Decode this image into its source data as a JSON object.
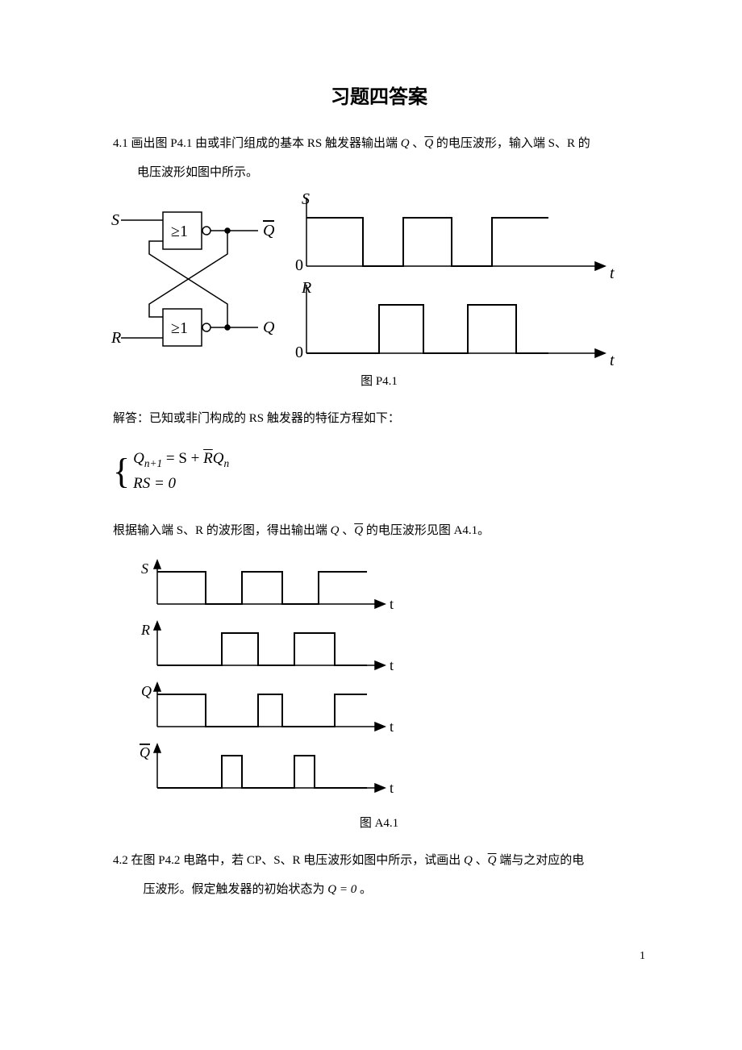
{
  "title": "习题四答案",
  "q41": {
    "text_a": "4.1 画出图 P4.1 由或非门组成的基本 RS 触发器输出端",
    "text_b": "的电压波形，输入端 S、R 的",
    "text_c": "电压波形如图中所示。",
    "caption": "图  P4.1",
    "solution_intro": "解答：已知或非门构成的 RS 触发器的特征方程如下：",
    "eq_line1_a": "Q",
    "eq_line1_sub": "n+1",
    "eq_line1_b": " = S + ",
    "eq_line1_c": "R",
    "eq_line1_d": "Q",
    "eq_line1_sub2": "n",
    "eq_line2": "RS = 0",
    "result_a": "根据输入端 S、R 的波形图，得出输出端",
    "result_b": "的电压波形见图 A4.1。",
    "caption2": "图 A4.1"
  },
  "q42": {
    "text_a": "4.2  在图 P4.2 电路中，若 CP、S、R 电压波形如图中所示，试画出",
    "text_b": "端与之对应的电",
    "text_c": "压波形。假定触发器的初始状态为",
    "text_d": " 。"
  },
  "sym": {
    "Q": "Q",
    "sep": " 、",
    "Qbar": "Q",
    "eq0": "Q = 0"
  },
  "page_num": "1",
  "style": {
    "stroke": "#000000",
    "bg": "#ffffff",
    "gray": "#3a3a3a",
    "font_serif": "Times New Roman",
    "title_fontsize": 24,
    "body_fontsize": 15
  },
  "circuit": {
    "labels": {
      "S": "S",
      "R": "R",
      "Q": "Q",
      "Qbar": "Q",
      "gate": "≥1"
    }
  },
  "waves_p41": {
    "S": {
      "label": "S",
      "levels": [
        1,
        0,
        1,
        0,
        1
      ],
      "widths": [
        70,
        50,
        60,
        50,
        70
      ],
      "zero": "0"
    },
    "R": {
      "label": "R",
      "levels": [
        0,
        1,
        0,
        1,
        0
      ],
      "widths": [
        90,
        55,
        55,
        60,
        40
      ],
      "zero": "0"
    },
    "axis_label": "t"
  },
  "waves_a41": {
    "rows": [
      {
        "label": "S",
        "levels": [
          1,
          0,
          1,
          0,
          1
        ],
        "widths": [
          60,
          45,
          50,
          45,
          60
        ]
      },
      {
        "label": "R",
        "levels": [
          0,
          1,
          0,
          1,
          0
        ],
        "widths": [
          80,
          45,
          45,
          50,
          40
        ]
      },
      {
        "label": "Q",
        "levels": [
          1,
          0,
          1,
          0,
          1
        ],
        "widths": [
          60,
          65,
          30,
          65,
          40
        ]
      },
      {
        "label": "Q̄",
        "levels": [
          0,
          1,
          0,
          1,
          0
        ],
        "widths": [
          80,
          25,
          65,
          25,
          65
        ]
      }
    ],
    "axis_label": "t"
  }
}
